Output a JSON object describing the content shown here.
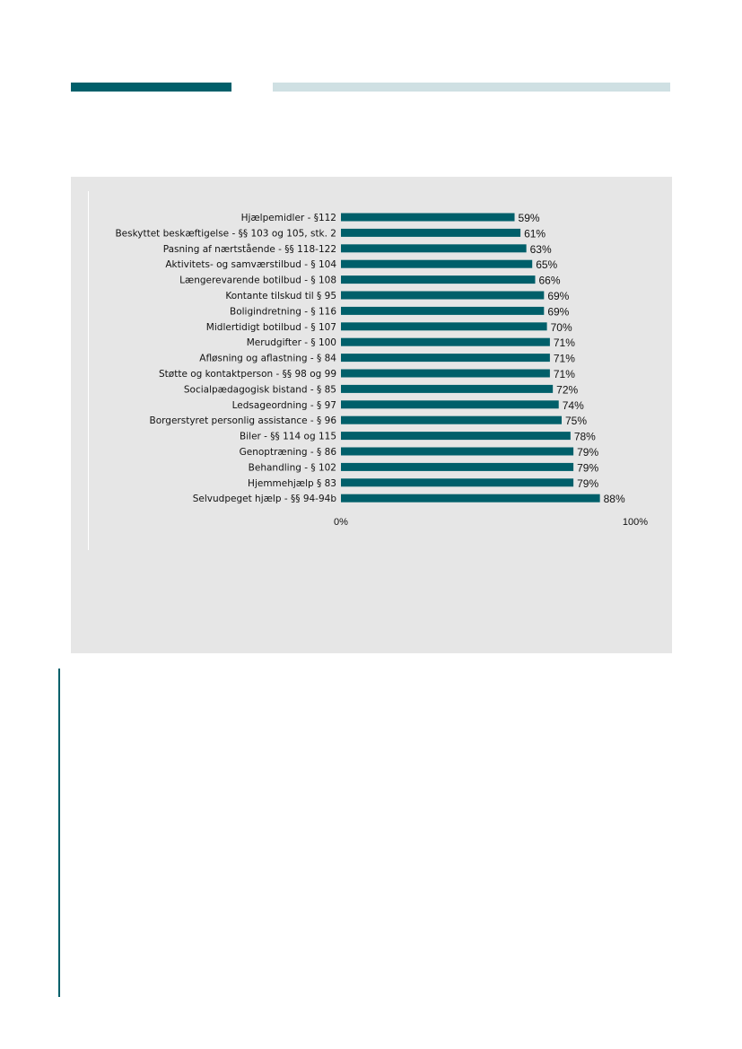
{
  "colors": {
    "bar": "#005f6a",
    "panel": "#e6e6e6",
    "accent_light": "#cfe0e3",
    "accent_dark": "#005f6a"
  },
  "chart_data": {
    "type": "bar",
    "orientation": "horizontal",
    "title": "",
    "xlabel": "",
    "ylabel": "",
    "xlim": [
      0,
      100
    ],
    "value_format": "percent",
    "grid": false,
    "categories": [
      "Hjælpemidler - §112",
      "Beskyttet beskæftigelse - §§ 103 og 105, stk. 2",
      "Pasning af nærtstående - §§ 118-122",
      "Aktivitets- og samværstilbud - § 104",
      "Længerevarende botilbud - § 108",
      "Kontante tilskud til § 95",
      "Boligindretning - § 116",
      "Midlertidigt botilbud - § 107",
      "Merudgifter - § 100",
      "Afløsning og aflastning - § 84",
      "Støtte og kontaktperson - §§ 98 og 99",
      "Socialpædagogisk bistand - § 85",
      "Ledsageordning - § 97",
      "Borgerstyret personlig assistance - § 96",
      "Biler - §§ 114 og 115",
      "Genoptræning - § 86",
      "Behandling - § 102",
      "Hjemmehjælp § 83",
      "Selvudpeget hjælp - §§ 94-94b"
    ],
    "values": [
      59,
      61,
      63,
      65,
      66,
      69,
      69,
      70,
      71,
      71,
      71,
      72,
      74,
      75,
      78,
      79,
      79,
      79,
      88
    ],
    "value_labels": [
      "59%",
      "61%",
      "63%",
      "65%",
      "66%",
      "69%",
      "69%",
      "70%",
      "71%",
      "71%",
      "71%",
      "72%",
      "74%",
      "75%",
      "78%",
      "79%",
      "79%",
      "79%",
      "88%"
    ],
    "x_ticks": [
      "0%",
      "100%"
    ]
  }
}
